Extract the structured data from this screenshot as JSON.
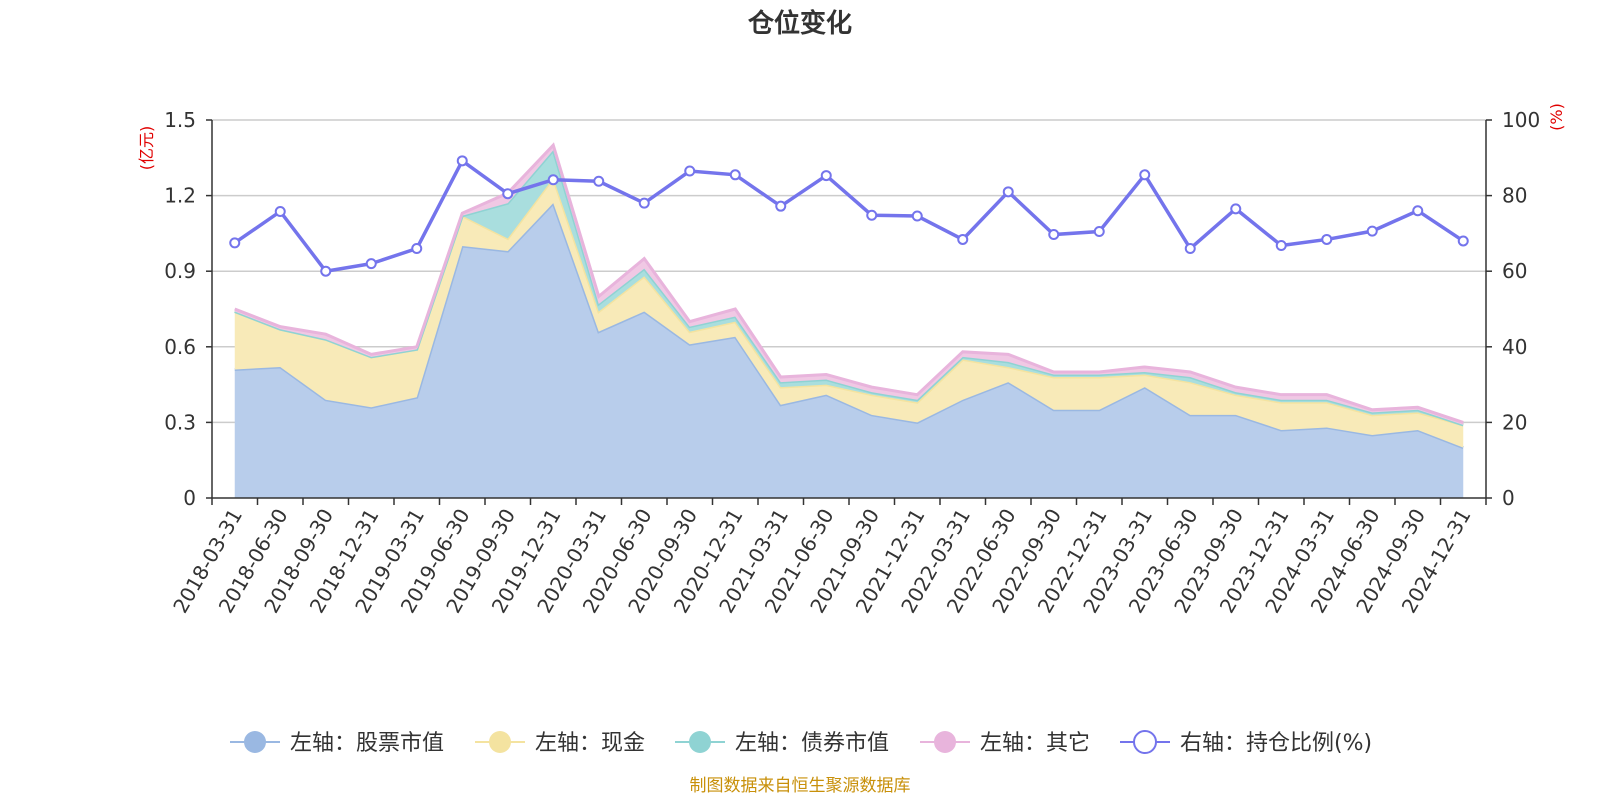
{
  "chart_data": {
    "type": "area",
    "title": "仓位变化",
    "left_axis": {
      "unit": "(亿元)",
      "ylim": [
        0,
        1.5
      ],
      "ticks": [
        0,
        0.3,
        0.6,
        0.9,
        1.2,
        1.5
      ],
      "tick_labels": [
        "0",
        "0.3",
        "0.6",
        "0.9",
        "1.2",
        "1.5"
      ]
    },
    "right_axis": {
      "unit": "(%)",
      "ylim": [
        0,
        100
      ],
      "ticks": [
        0,
        20,
        40,
        60,
        80,
        100
      ],
      "tick_labels": [
        "0",
        "20",
        "40",
        "60",
        "80",
        "100"
      ]
    },
    "categories": [
      "2018-03-31",
      "2018-06-30",
      "2018-09-30",
      "2018-12-31",
      "2019-03-31",
      "2019-06-30",
      "2019-09-30",
      "2019-12-31",
      "2020-03-31",
      "2020-06-30",
      "2020-09-30",
      "2020-12-31",
      "2021-03-31",
      "2021-06-30",
      "2021-09-30",
      "2021-12-31",
      "2022-03-31",
      "2022-06-30",
      "2022-09-30",
      "2022-12-31",
      "2023-03-31",
      "2023-06-30",
      "2023-09-30",
      "2023-12-31",
      "2024-03-31",
      "2024-06-30",
      "2024-09-30",
      "2024-12-31"
    ],
    "series": [
      {
        "name": "左轴：股票市值",
        "axis": "left",
        "kind": "stacked-area",
        "color": "#9ab8e2",
        "fill": "#b8cdeb",
        "values": [
          0.51,
          0.52,
          0.39,
          0.36,
          0.4,
          1.0,
          0.98,
          1.17,
          0.66,
          0.74,
          0.61,
          0.64,
          0.37,
          0.41,
          0.33,
          0.3,
          0.39,
          0.46,
          0.35,
          0.35,
          0.44,
          0.33,
          0.33,
          0.27,
          0.28,
          0.25,
          0.27,
          0.2
        ]
      },
      {
        "name": "左轴：现金",
        "axis": "left",
        "kind": "stacked-area",
        "color": "#f4e3a0",
        "fill": "#f8eab8",
        "values": [
          0.23,
          0.15,
          0.24,
          0.2,
          0.19,
          0.12,
          0.05,
          0.1,
          0.08,
          0.14,
          0.05,
          0.06,
          0.07,
          0.04,
          0.08,
          0.08,
          0.16,
          0.06,
          0.13,
          0.13,
          0.05,
          0.13,
          0.08,
          0.11,
          0.1,
          0.08,
          0.07,
          0.09
        ]
      },
      {
        "name": "左轴：债券市值",
        "axis": "left",
        "kind": "stacked-area",
        "color": "#8fd3d3",
        "fill": "#a9dede",
        "values": [
          0.0,
          0.0,
          0.0,
          0.0,
          0.0,
          0.0,
          0.14,
          0.11,
          0.03,
          0.03,
          0.02,
          0.02,
          0.02,
          0.02,
          0.01,
          0.01,
          0.01,
          0.02,
          0.01,
          0.01,
          0.01,
          0.02,
          0.01,
          0.01,
          0.01,
          0.01,
          0.01,
          0.0
        ]
      },
      {
        "name": "左轴：其它",
        "axis": "left",
        "kind": "stacked-area",
        "color": "#e8b4dc",
        "fill": "#f0c8e4",
        "values": [
          0.01,
          0.01,
          0.02,
          0.01,
          0.01,
          0.01,
          0.04,
          0.02,
          0.03,
          0.04,
          0.02,
          0.03,
          0.02,
          0.02,
          0.02,
          0.02,
          0.02,
          0.03,
          0.01,
          0.01,
          0.02,
          0.02,
          0.02,
          0.02,
          0.02,
          0.01,
          0.01,
          0.01
        ]
      },
      {
        "name": "右轴：持仓比例(%)",
        "axis": "right",
        "kind": "line",
        "color": "#7474ec",
        "values": [
          67.5,
          75.8,
          60.0,
          62.0,
          66.0,
          89.2,
          80.5,
          84.2,
          83.8,
          78.0,
          86.5,
          85.5,
          77.2,
          85.3,
          74.8,
          74.6,
          68.4,
          81.0,
          69.7,
          70.5,
          85.5,
          66.0,
          76.5,
          66.8,
          68.4,
          70.6,
          76.0,
          68.0
        ]
      }
    ],
    "legend_position": "bottom-center",
    "grid": true
  },
  "footer": {
    "source": "制图数据来自恒生聚源数据库"
  }
}
